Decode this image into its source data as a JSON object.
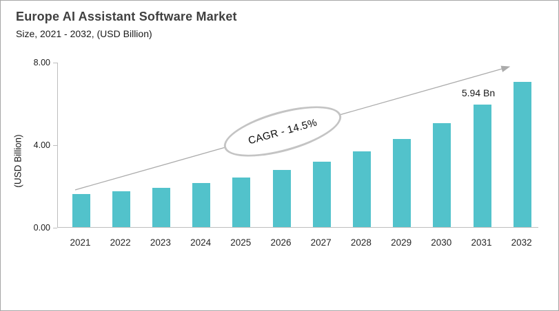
{
  "header": {
    "title": "Europe AI Assistant Software Market",
    "subtitle": "Size, 2021 - 2032, (USD Billion)"
  },
  "chart_data": {
    "type": "bar",
    "title": "Europe AI Assistant Software Market",
    "subtitle": "Size, 2021 - 2032, (USD Billion)",
    "categories": [
      "2021",
      "2022",
      "2023",
      "2024",
      "2025",
      "2026",
      "2027",
      "2028",
      "2029",
      "2030",
      "2031",
      "2032"
    ],
    "values": [
      1.59,
      1.73,
      1.89,
      2.12,
      2.39,
      2.75,
      3.15,
      3.68,
      4.28,
      5.04,
      5.94,
      7.04
    ],
    "xlabel": "",
    "ylabel": "(USD Billion)",
    "ylim": [
      0,
      8
    ],
    "yticks": [
      "0.00",
      "4.00",
      "8.00"
    ],
    "grid": false,
    "legend": false,
    "bar_color": "#52c2cb",
    "annotations": {
      "cagr_label": "CAGR - 14.5%",
      "data_label": {
        "year": "2031",
        "text": "5.94 Bn"
      },
      "trend_arrow": true
    }
  }
}
